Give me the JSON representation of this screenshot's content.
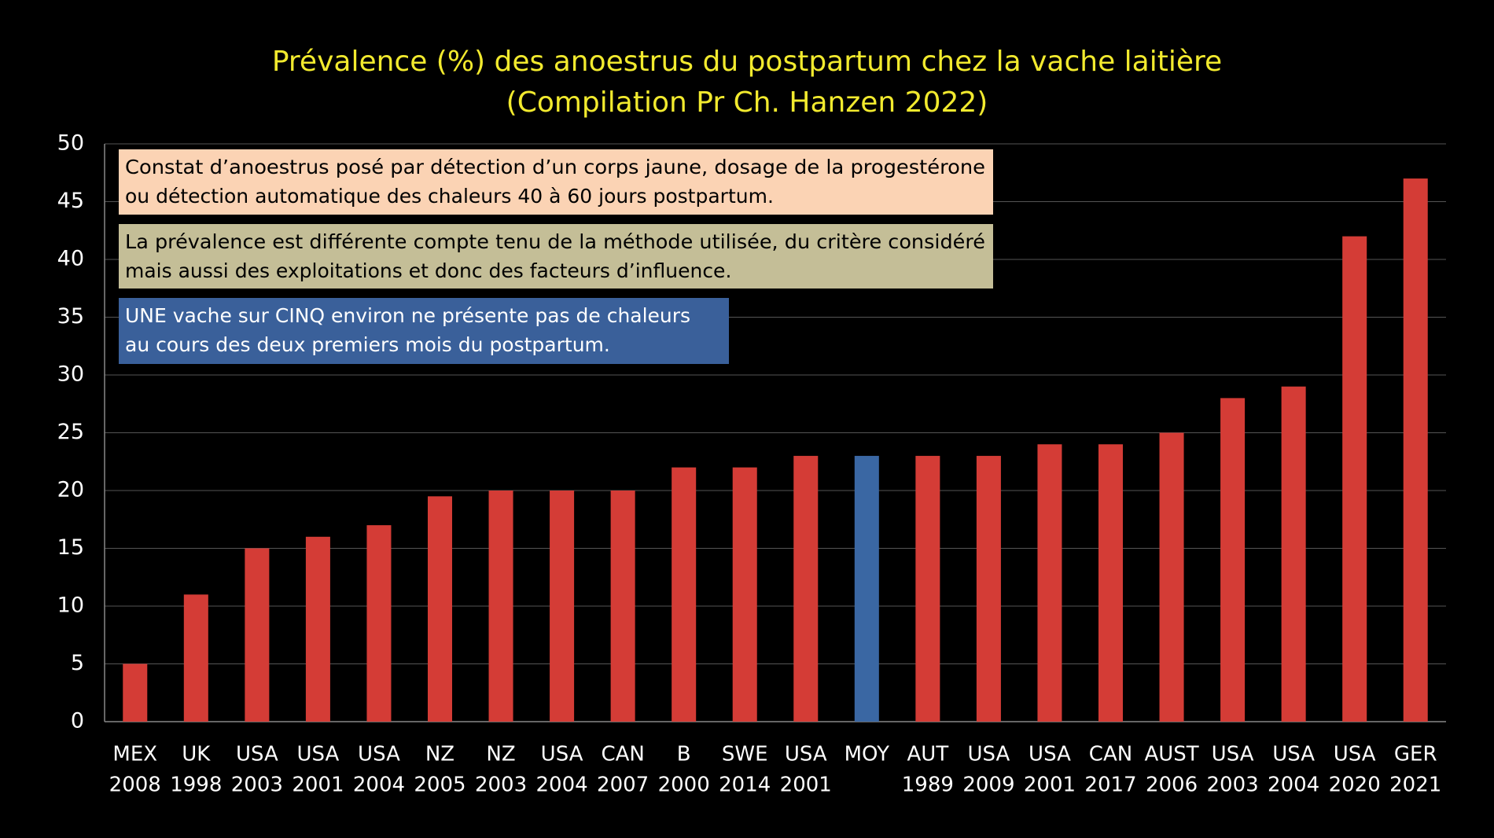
{
  "chart_data": {
    "type": "bar",
    "title": [
      "Prévalence (%) des anoestrus du postpartum chez la vache laitière",
      "(Compilation Pr Ch. Hanzen 2022)"
    ],
    "categories": [
      [
        "MEX",
        "2008"
      ],
      [
        "UK",
        "1998"
      ],
      [
        "USA",
        "2003"
      ],
      [
        "USA",
        "2001"
      ],
      [
        "USA",
        "2004"
      ],
      [
        "NZ",
        "2005"
      ],
      [
        "NZ",
        "2003"
      ],
      [
        "USA",
        "2004"
      ],
      [
        "CAN",
        "2007"
      ],
      [
        "B",
        "2000"
      ],
      [
        "SWE",
        "2014"
      ],
      [
        "USA",
        "2001"
      ],
      [
        "MOY"
      ],
      [
        "AUT",
        "1989"
      ],
      [
        "USA",
        "2009"
      ],
      [
        "USA",
        "2001"
      ],
      [
        "CAN",
        "2017"
      ],
      [
        "AUST",
        "2006"
      ],
      [
        "USA",
        "2003"
      ],
      [
        "USA",
        "2004"
      ],
      [
        "USA",
        "2020"
      ],
      [
        "GER",
        "2021"
      ]
    ],
    "values": [
      5,
      11,
      15,
      16,
      17,
      19.5,
      20,
      20,
      20,
      22,
      22,
      23,
      23,
      23,
      23,
      24,
      24,
      25,
      28,
      29,
      42,
      47
    ],
    "colors": [
      "#d43c36",
      "#d43c36",
      "#d43c36",
      "#d43c36",
      "#d43c36",
      "#d43c36",
      "#d43c36",
      "#d43c36",
      "#d43c36",
      "#d43c36",
      "#d43c36",
      "#d43c36",
      "#3a67a3",
      "#d43c36",
      "#d43c36",
      "#d43c36",
      "#d43c36",
      "#d43c36",
      "#d43c36",
      "#d43c36",
      "#d43c36",
      "#d43c36"
    ],
    "ylim": [
      0,
      50
    ],
    "yticks": [
      0,
      5,
      10,
      15,
      20,
      25,
      30,
      35,
      40,
      45,
      50
    ],
    "grid": true,
    "annotations": [
      {
        "lines": [
          "Constat d’anoestrus posé par détection d’un corps jaune, dosage de la progestérone",
          "ou détection automatique des chaleurs 40 à 60 jours postpartum."
        ],
        "background": "#fbd3b4",
        "color": "#000000"
      },
      {
        "lines": [
          "La prévalence est différente compte tenu de la méthode utilisée, du critère considéré",
          "mais aussi des exploitations et  donc des facteurs d’influence."
        ],
        "background": "#c4be97",
        "color": "#000000"
      },
      {
        "lines": [
          "UNE vache sur CINQ  environ ne présente pas de chaleurs",
          "au cours des deux premiers mois du postpartum."
        ],
        "background": "#3a609a",
        "color": "#ffffff"
      }
    ]
  }
}
